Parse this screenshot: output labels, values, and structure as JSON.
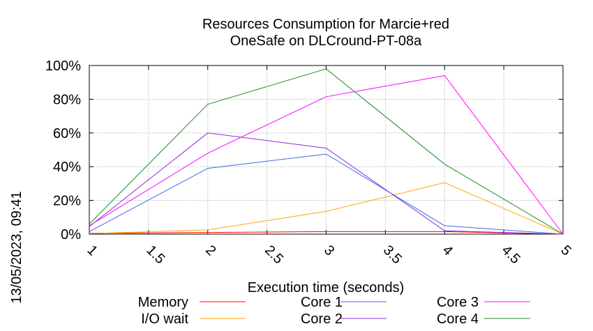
{
  "chart_data": {
    "type": "line",
    "title": "Resources Consumption for Marcie+red",
    "subtitle": "OneSafe on DLCround-PT-08a",
    "xlabel": "Execution time (seconds)",
    "ylabel": "",
    "timestamp": "13/05/2023, 09:41",
    "xlim": [
      1,
      5
    ],
    "ylim": [
      0,
      100
    ],
    "x_ticks": [
      "1",
      "1.5",
      "2",
      "2.5",
      "3",
      "3.5",
      "4",
      "4.5",
      "5"
    ],
    "y_ticks": [
      "0%",
      "20%",
      "40%",
      "60%",
      "80%",
      "100%"
    ],
    "grid": true,
    "legend_position": "bottom",
    "series": [
      {
        "name": "Memory",
        "color": "#ff0000",
        "x": [
          1,
          2,
          3,
          4,
          5
        ],
        "y": [
          0.5,
          1,
          1.5,
          1.5,
          0
        ]
      },
      {
        "name": "I/O wait",
        "color": "#ffa500",
        "x": [
          1,
          2,
          3,
          4,
          5
        ],
        "y": [
          0.3,
          2.5,
          13.5,
          30.5,
          0
        ]
      },
      {
        "name": "Core 1",
        "color": "#4169e1",
        "x": [
          1,
          2,
          3,
          4,
          5
        ],
        "y": [
          1.5,
          39,
          47.5,
          5,
          0
        ]
      },
      {
        "name": "Core 2",
        "color": "#8a2be2",
        "x": [
          1,
          2,
          3,
          4,
          5
        ],
        "y": [
          4.5,
          60,
          51,
          2,
          0
        ]
      },
      {
        "name": "Core 3",
        "color": "#ff00ff",
        "x": [
          1,
          2,
          3,
          4,
          5
        ],
        "y": [
          5,
          48,
          81.5,
          94,
          0
        ]
      },
      {
        "name": "Core 4",
        "color": "#228b22",
        "x": [
          1,
          2,
          3,
          4,
          5
        ],
        "y": [
          6,
          77,
          98,
          41.5,
          0
        ]
      }
    ]
  }
}
